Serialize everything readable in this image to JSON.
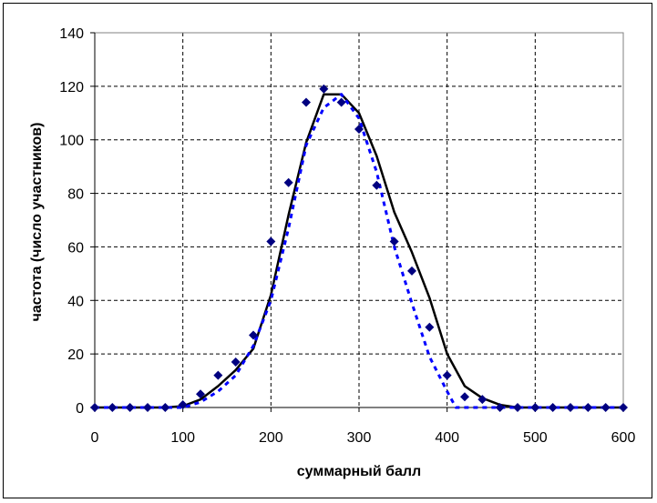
{
  "chart_data": {
    "type": "scatter",
    "title": "",
    "xlabel": "суммарный балл",
    "ylabel": "частота (число участников)",
    "xlim": [
      0,
      600
    ],
    "ylim": [
      0,
      140
    ],
    "x_ticks": [
      "0",
      "100",
      "200",
      "300",
      "400",
      "500",
      "600"
    ],
    "y_ticks": [
      "0",
      "20",
      "40",
      "60",
      "80",
      "100",
      "120",
      "140"
    ],
    "grid": true,
    "series": [
      {
        "kind": "markers",
        "marker": "diamond",
        "color": "#000080",
        "x": [
          0,
          20,
          40,
          60,
          80,
          100,
          120,
          140,
          160,
          180,
          200,
          220,
          240,
          260,
          280,
          300,
          320,
          340,
          360,
          380,
          400,
          420,
          440,
          460,
          480,
          500,
          520,
          540,
          560,
          580,
          600
        ],
        "y": [
          0,
          0,
          0,
          0,
          0,
          1,
          5,
          12,
          17,
          27,
          62,
          84,
          114,
          119,
          114,
          104,
          83,
          62,
          51,
          30,
          12,
          4,
          3,
          0,
          0,
          0,
          0,
          0,
          0,
          0,
          0
        ]
      },
      {
        "kind": "line",
        "style": "solid",
        "color": "#000000",
        "x": [
          0,
          20,
          40,
          60,
          80,
          100,
          120,
          140,
          160,
          180,
          200,
          220,
          240,
          260,
          280,
          300,
          320,
          340,
          360,
          380,
          400,
          420,
          440,
          460,
          480,
          500,
          520,
          540,
          560,
          580,
          600
        ],
        "y": [
          0,
          0,
          0,
          0,
          0,
          0.5,
          3,
          8,
          14,
          22,
          42,
          72,
          99,
          117,
          117,
          110,
          94,
          73,
          58,
          41,
          20,
          8,
          3.5,
          1,
          0,
          0,
          0,
          0,
          0,
          0,
          0
        ]
      },
      {
        "kind": "line",
        "style": "dashed",
        "color": "#0000ff",
        "x": [
          0,
          20,
          40,
          60,
          80,
          100,
          120,
          140,
          160,
          180,
          200,
          220,
          240,
          260,
          280,
          300,
          320,
          340,
          360,
          380,
          400,
          410,
          420,
          440,
          460,
          480,
          500,
          520,
          540,
          560,
          580,
          600
        ],
        "y": [
          0,
          0,
          0,
          0,
          0,
          0,
          2,
          6,
          12,
          23,
          40,
          67,
          98,
          112,
          117,
          108,
          88,
          60,
          39,
          19,
          6,
          0,
          0,
          0,
          0,
          0,
          0,
          0,
          0,
          0,
          0,
          0
        ]
      }
    ]
  }
}
